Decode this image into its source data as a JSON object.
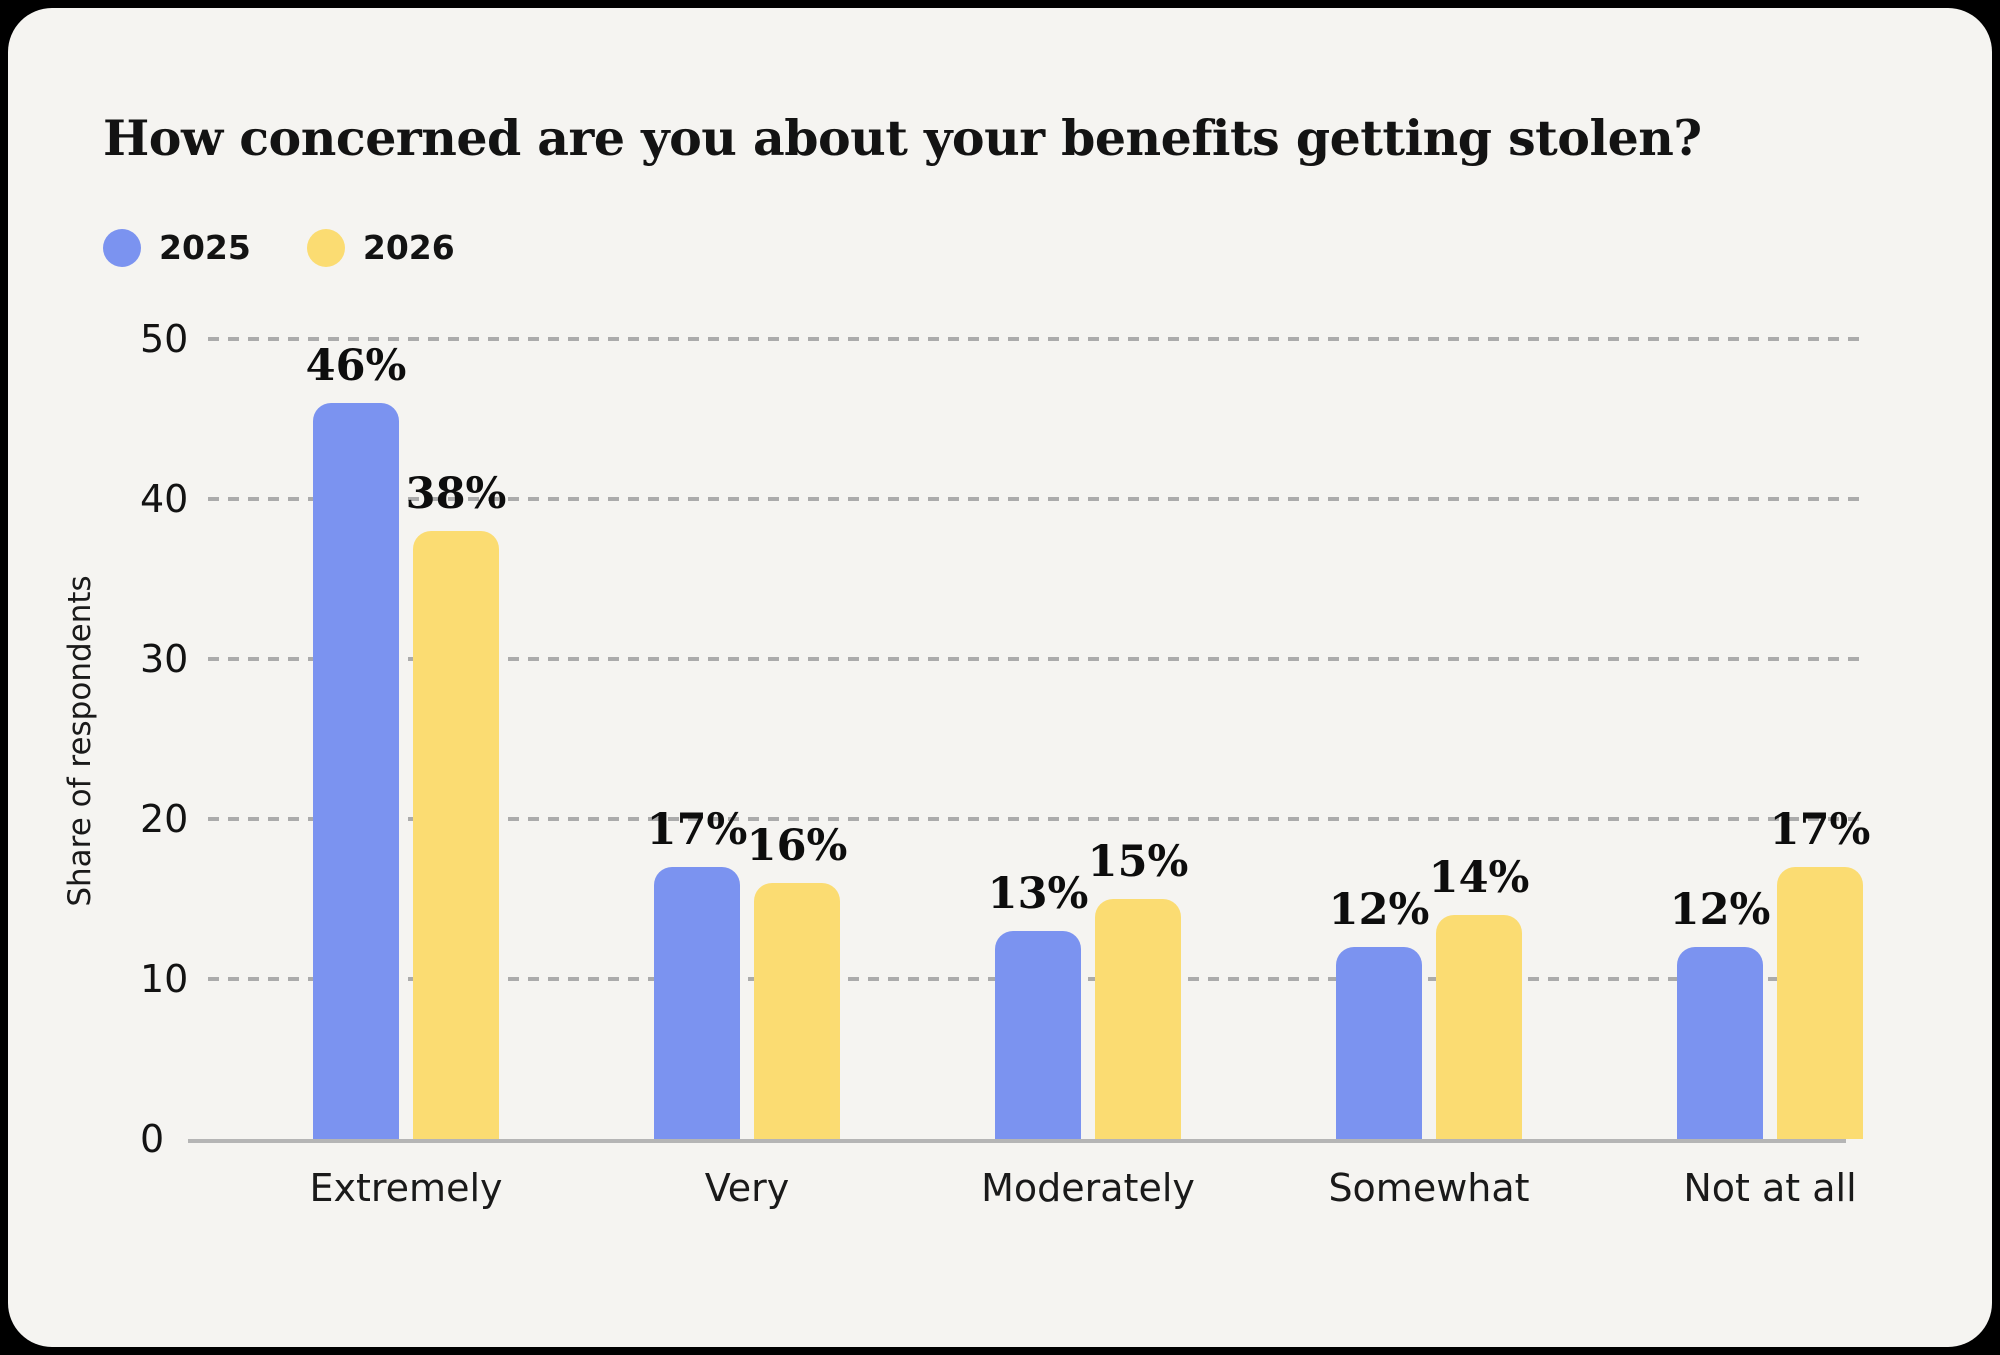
{
  "chart_data": {
    "type": "bar",
    "title": "How concerned are you about your benefits getting stolen?",
    "xlabel": "",
    "ylabel": "Share of respondents",
    "categories": [
      "Extremely",
      "Very",
      "Moderately",
      "Somewhat",
      "Not at all"
    ],
    "series": [
      {
        "name": "2025",
        "color": "#7B93F0",
        "values": [
          46,
          17,
          13,
          12,
          12
        ]
      },
      {
        "name": "2026",
        "color": "#FBDC72",
        "values": [
          38,
          16,
          15,
          14,
          17
        ]
      }
    ],
    "value_suffix": "%",
    "ylim": [
      0,
      50
    ],
    "yticks": [
      0,
      10,
      20,
      30,
      40,
      50
    ],
    "grid": "horizontal-dashed",
    "legend_position": "top-left",
    "colors": {
      "background": "#F5F4F1",
      "page_border": "#000000",
      "text": "#131313",
      "gridline": "#ABABAB",
      "axis_line": "#B5B5B5"
    }
  }
}
